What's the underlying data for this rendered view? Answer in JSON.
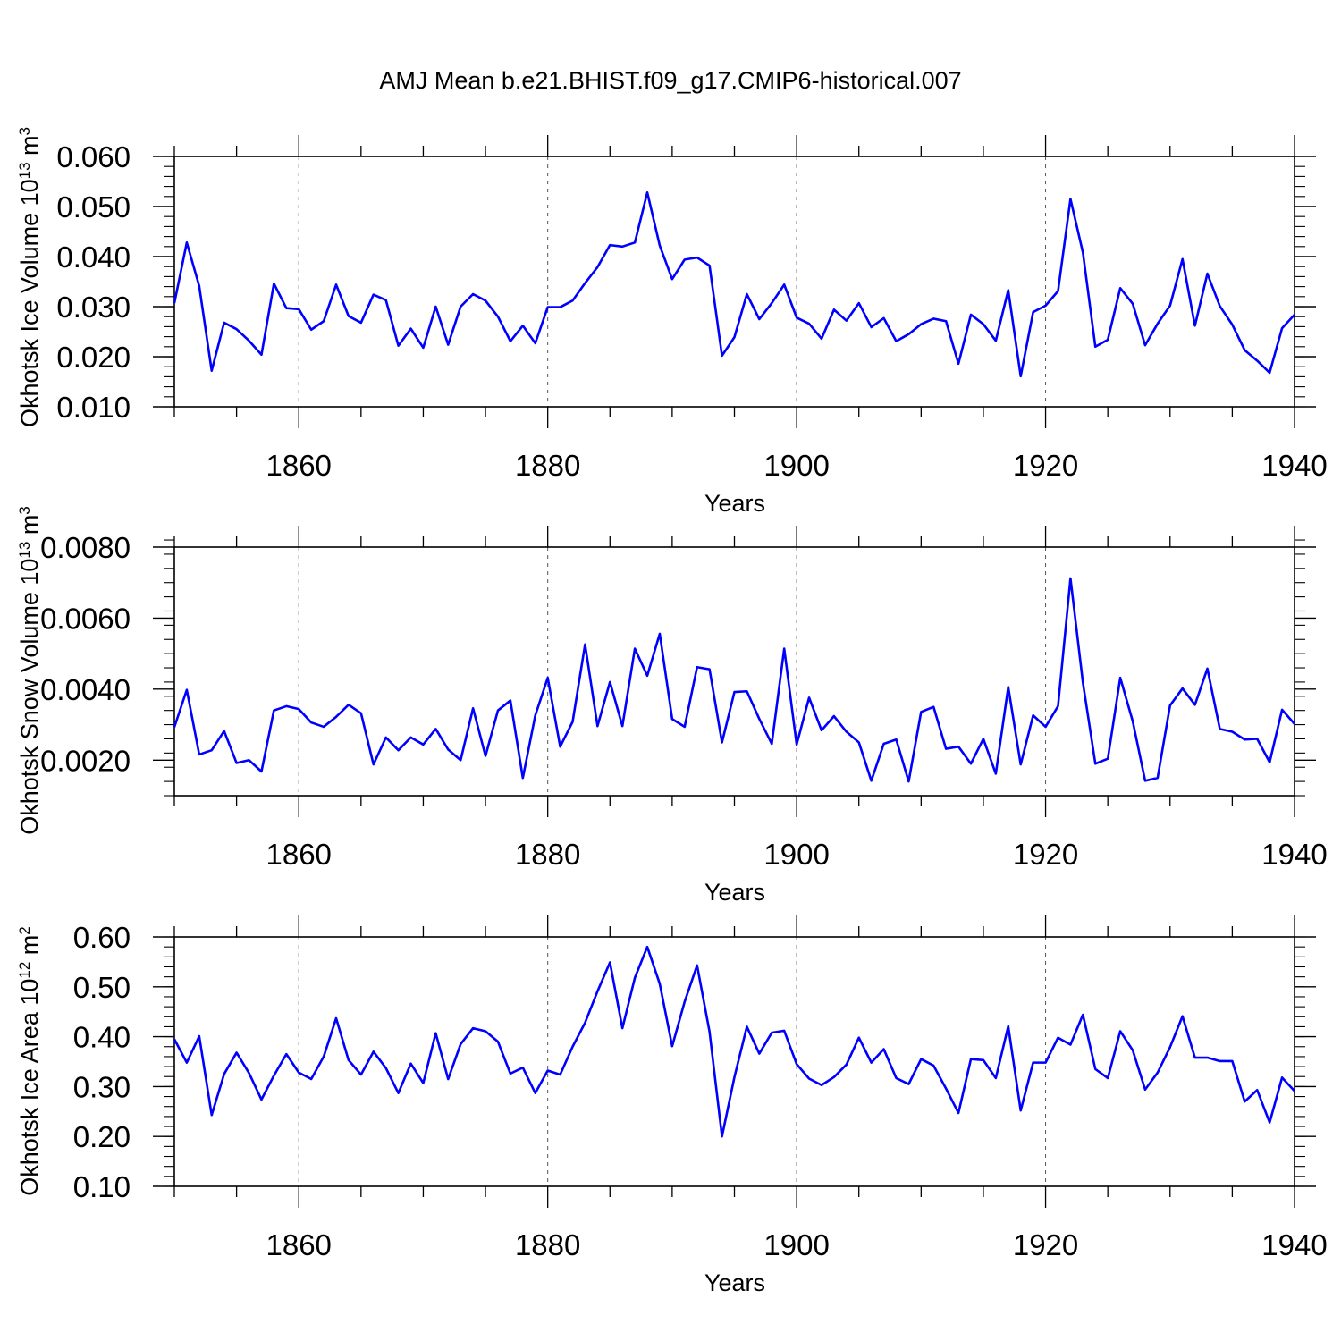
{
  "title": "AMJ Mean b.e21.BHIST.f09_g17.CMIP6-historical.007",
  "colors": {
    "line": "#0000ff",
    "axis": "#000000",
    "grid": "#555555"
  },
  "chart_data": [
    {
      "type": "line",
      "name": "ice-volume",
      "ylabel": "Okhotsk Ice Volume 10",
      "ylabel_sup": "13",
      "ylabel_unit": " m",
      "ylabel_unit_sup": "3",
      "xlabel": "Years",
      "xlim": [
        1850,
        1940
      ],
      "ylim": [
        0.01,
        0.06
      ],
      "yticks": [
        0.01,
        0.02,
        0.03,
        0.04,
        0.05,
        0.06
      ],
      "yticklabels": [
        "0.010",
        "0.020",
        "0.030",
        "0.040",
        "0.050",
        "0.060"
      ],
      "yminor": 0.002,
      "xticks": [
        1860,
        1880,
        1900,
        1920,
        1940
      ],
      "xticklabels": [
        "1860",
        "1880",
        "1900",
        "1920",
        "1940"
      ],
      "x_start": 1850,
      "values": [
        0.0307,
        0.0428,
        0.0341,
        0.0172,
        0.0268,
        0.0255,
        0.0232,
        0.0204,
        0.0346,
        0.0297,
        0.0295,
        0.0254,
        0.0271,
        0.0344,
        0.0281,
        0.0268,
        0.0324,
        0.0313,
        0.0222,
        0.0256,
        0.0218,
        0.03,
        0.0224,
        0.03,
        0.0325,
        0.0312,
        0.028,
        0.0231,
        0.0262,
        0.0227,
        0.0299,
        0.0299,
        0.0312,
        0.0347,
        0.0379,
        0.0423,
        0.042,
        0.0428,
        0.0528,
        0.0422,
        0.0355,
        0.0394,
        0.0398,
        0.0382,
        0.0202,
        0.0239,
        0.0325,
        0.0275,
        0.0307,
        0.0344,
        0.0278,
        0.0266,
        0.0236,
        0.0294,
        0.0272,
        0.0307,
        0.0259,
        0.0277,
        0.0231,
        0.0245,
        0.0265,
        0.0276,
        0.0271,
        0.0186,
        0.0284,
        0.0265,
        0.0232,
        0.0333,
        0.0161,
        0.0289,
        0.0302,
        0.0331,
        0.0515,
        0.0408,
        0.022,
        0.0234,
        0.0337,
        0.0306,
        0.0223,
        0.0266,
        0.0302,
        0.0395,
        0.0262,
        0.0366,
        0.0301,
        0.0264,
        0.0213,
        0.0192,
        0.0168,
        0.0257,
        0.0284
      ]
    },
    {
      "type": "line",
      "name": "snow-volume",
      "ylabel": "Okhotsk Snow Volume 10",
      "ylabel_sup": "13",
      "ylabel_unit": " m",
      "ylabel_unit_sup": "3",
      "xlabel": "Years",
      "xlim": [
        1850,
        1940
      ],
      "ylim": [
        0.001,
        0.008
      ],
      "yticks": [
        0.002,
        0.004,
        0.006,
        0.008
      ],
      "yticklabels": [
        "0.0020",
        "0.0040",
        "0.0060",
        "0.0080"
      ],
      "yminor": 0.0004,
      "xticks": [
        1860,
        1880,
        1900,
        1920,
        1940
      ],
      "xticklabels": [
        "1860",
        "1880",
        "1900",
        "1920",
        "1940"
      ],
      "x_start": 1850,
      "values": [
        0.00293,
        0.00398,
        0.00216,
        0.00228,
        0.00282,
        0.00192,
        0.002,
        0.00168,
        0.0034,
        0.00352,
        0.00344,
        0.00306,
        0.00294,
        0.00322,
        0.00356,
        0.00332,
        0.00188,
        0.00264,
        0.00228,
        0.00264,
        0.00244,
        0.00288,
        0.0023,
        0.002,
        0.00346,
        0.00212,
        0.0034,
        0.00368,
        0.0015,
        0.00326,
        0.00432,
        0.00238,
        0.00308,
        0.00526,
        0.00296,
        0.0042,
        0.00296,
        0.00514,
        0.00438,
        0.00556,
        0.00316,
        0.00294,
        0.00462,
        0.00456,
        0.0025,
        0.00392,
        0.00394,
        0.00316,
        0.00246,
        0.00514,
        0.00244,
        0.00376,
        0.00284,
        0.00324,
        0.0028,
        0.0025,
        0.00142,
        0.00246,
        0.00258,
        0.0014,
        0.00336,
        0.0035,
        0.00232,
        0.00238,
        0.0019,
        0.0026,
        0.00162,
        0.00406,
        0.00188,
        0.00326,
        0.00294,
        0.00352,
        0.00712,
        0.00418,
        0.0019,
        0.00204,
        0.00432,
        0.0031,
        0.00142,
        0.0015,
        0.00354,
        0.00402,
        0.00356,
        0.00458,
        0.00288,
        0.0028,
        0.00258,
        0.0026,
        0.00194,
        0.00342,
        0.00302
      ]
    },
    {
      "type": "line",
      "name": "ice-area",
      "ylabel": "Okhotsk Ice Area 10",
      "ylabel_sup": "12",
      "ylabel_unit": " m",
      "ylabel_unit_sup": "2",
      "xlabel": "Years",
      "xlim": [
        1850,
        1940
      ],
      "ylim": [
        0.1,
        0.6
      ],
      "yticks": [
        0.1,
        0.2,
        0.3,
        0.4,
        0.5,
        0.6
      ],
      "yticklabels": [
        "0.10",
        "0.20",
        "0.30",
        "0.40",
        "0.50",
        "0.60"
      ],
      "yminor": 0.02,
      "xticks": [
        1860,
        1880,
        1900,
        1920,
        1940
      ],
      "xticklabels": [
        "1860",
        "1880",
        "1900",
        "1920",
        "1940"
      ],
      "x_start": 1850,
      "values": [
        0.395,
        0.348,
        0.401,
        0.243,
        0.325,
        0.368,
        0.327,
        0.274,
        0.322,
        0.365,
        0.328,
        0.315,
        0.36,
        0.437,
        0.353,
        0.324,
        0.37,
        0.337,
        0.287,
        0.346,
        0.307,
        0.407,
        0.315,
        0.385,
        0.417,
        0.411,
        0.39,
        0.326,
        0.338,
        0.287,
        0.332,
        0.324,
        0.38,
        0.428,
        0.491,
        0.549,
        0.417,
        0.518,
        0.58,
        0.506,
        0.381,
        0.47,
        0.543,
        0.41,
        0.2,
        0.319,
        0.42,
        0.366,
        0.408,
        0.412,
        0.345,
        0.316,
        0.303,
        0.319,
        0.344,
        0.398,
        0.348,
        0.375,
        0.317,
        0.305,
        0.355,
        0.342,
        0.296,
        0.247,
        0.355,
        0.353,
        0.317,
        0.421,
        0.252,
        0.348,
        0.348,
        0.398,
        0.384,
        0.444,
        0.335,
        0.317,
        0.411,
        0.373,
        0.294,
        0.328,
        0.379,
        0.441,
        0.358,
        0.358,
        0.351,
        0.351,
        0.27,
        0.293,
        0.228,
        0.318,
        0.291
      ]
    }
  ]
}
